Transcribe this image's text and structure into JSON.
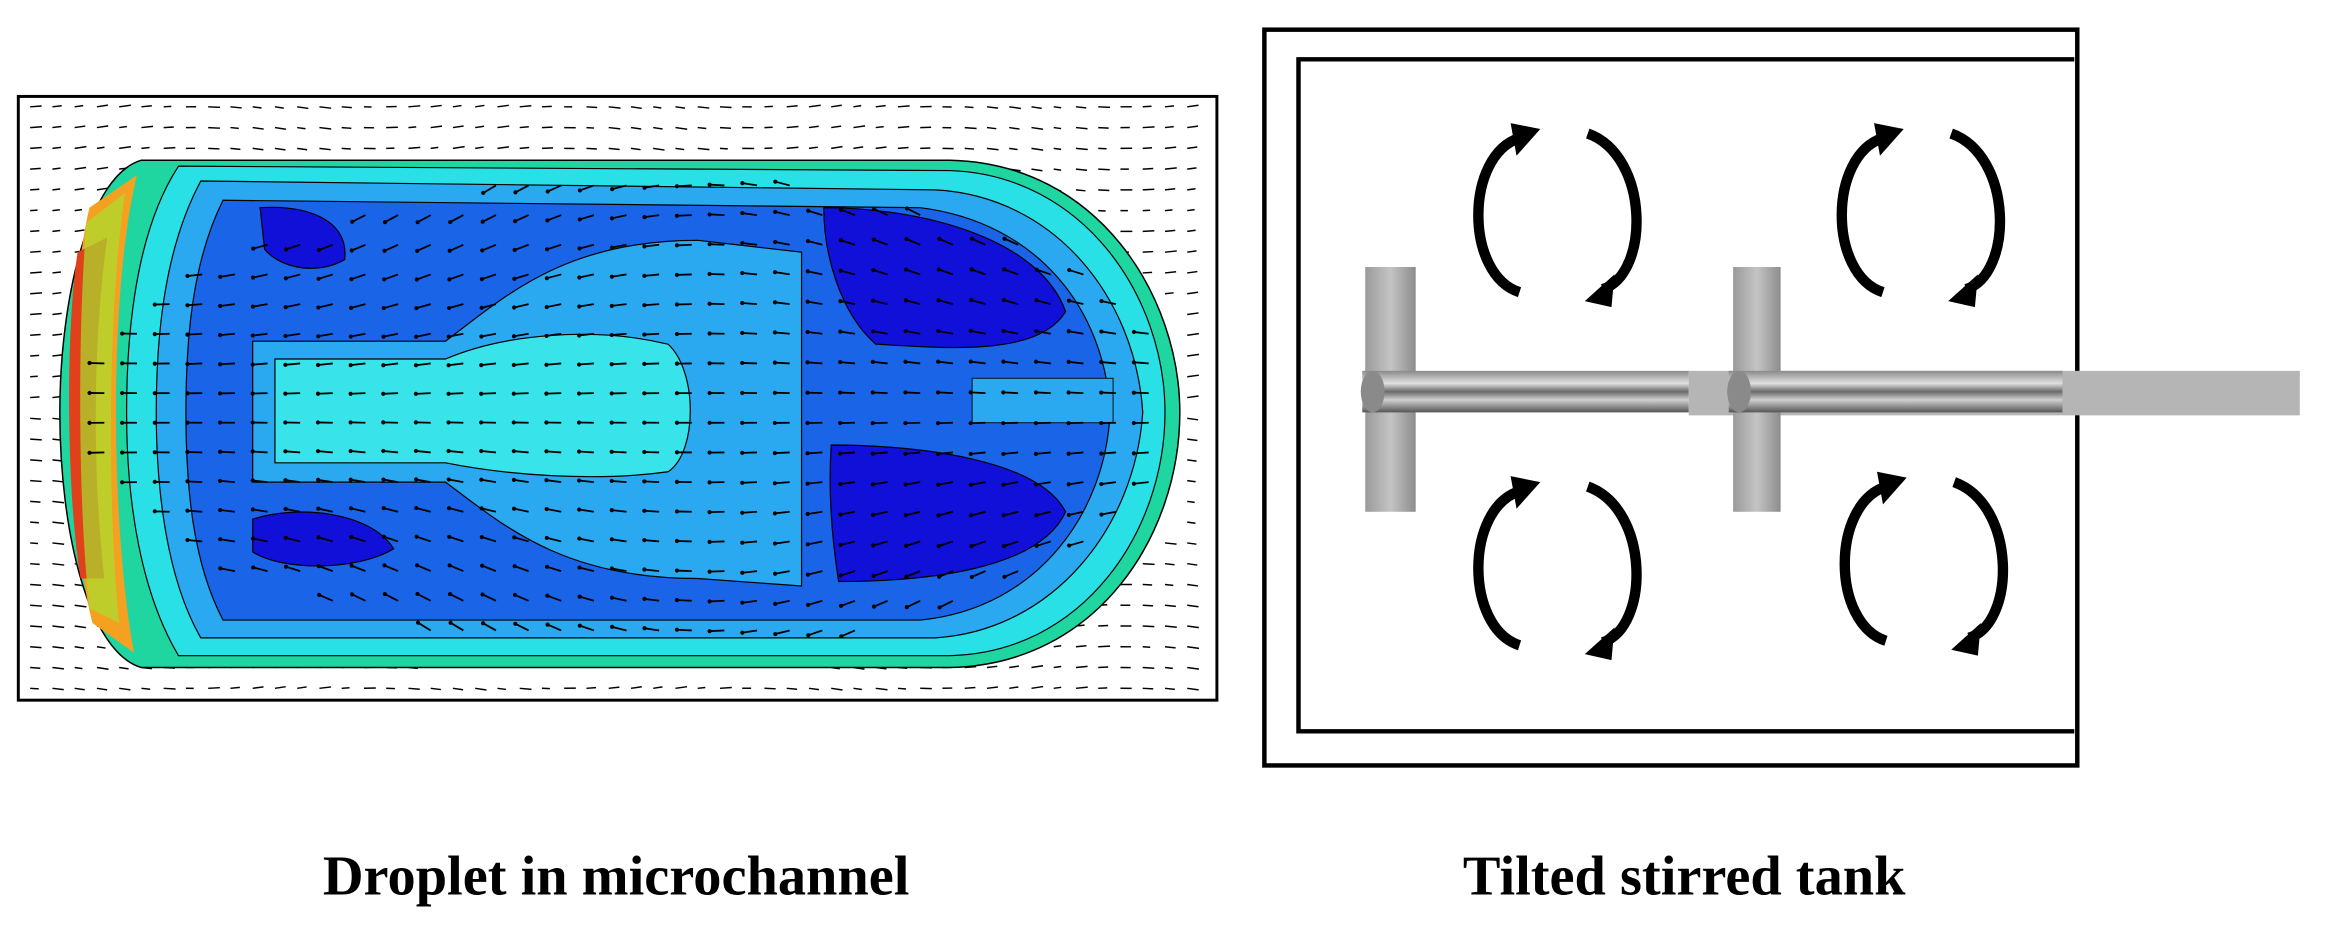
{
  "left_panel": {
    "caption": "Droplet in microchannel"
  },
  "right_panel": {
    "caption": "Tilted stirred tank"
  }
}
